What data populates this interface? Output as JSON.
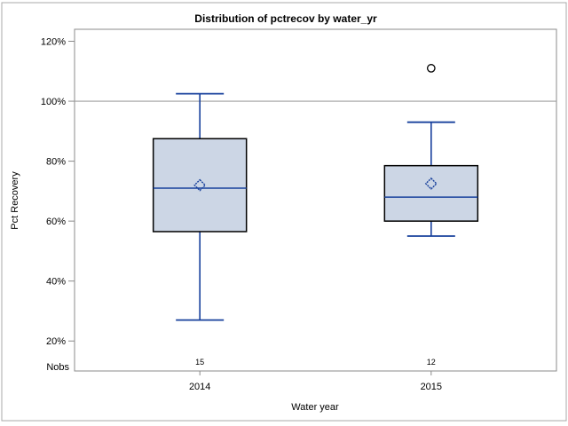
{
  "window": {
    "background": "#ffffff",
    "outer_border_color": "#a8a8a8"
  },
  "colors": {
    "box_fill": "#ccd6e5",
    "box_border": "#000000",
    "stat_line": "#17409c",
    "axis_line": "#8b8b8b",
    "tick_line": "#8b8b8b",
    "refline": "#9d9d9d",
    "outlier_stroke": "#000000",
    "text": "#000000"
  },
  "chart_data": {
    "type": "boxplot",
    "title": "Distribution of pctrecov by water_yr",
    "xlabel": "Water year",
    "ylabel": "Pct Recovery",
    "ylim": [
      10,
      124
    ],
    "yticks": [
      20,
      40,
      60,
      80,
      100,
      120
    ],
    "ytick_suffix": "%",
    "refline": 100,
    "grid": "off",
    "legend": "none",
    "nobs_row_label": "Nobs",
    "categories": [
      "2014",
      "2015"
    ],
    "series": [
      {
        "category": "2014",
        "nobs": "15",
        "whisker_low": 27,
        "q1": 56.5,
        "median": 71,
        "mean": 72,
        "q3": 87.5,
        "whisker_high": 102.5,
        "outliers": []
      },
      {
        "category": "2015",
        "nobs": "12",
        "whisker_low": 55,
        "q1": 60,
        "median": 68,
        "mean": 72.5,
        "q3": 78.5,
        "whisker_high": 93,
        "outliers": [
          111
        ]
      }
    ]
  }
}
